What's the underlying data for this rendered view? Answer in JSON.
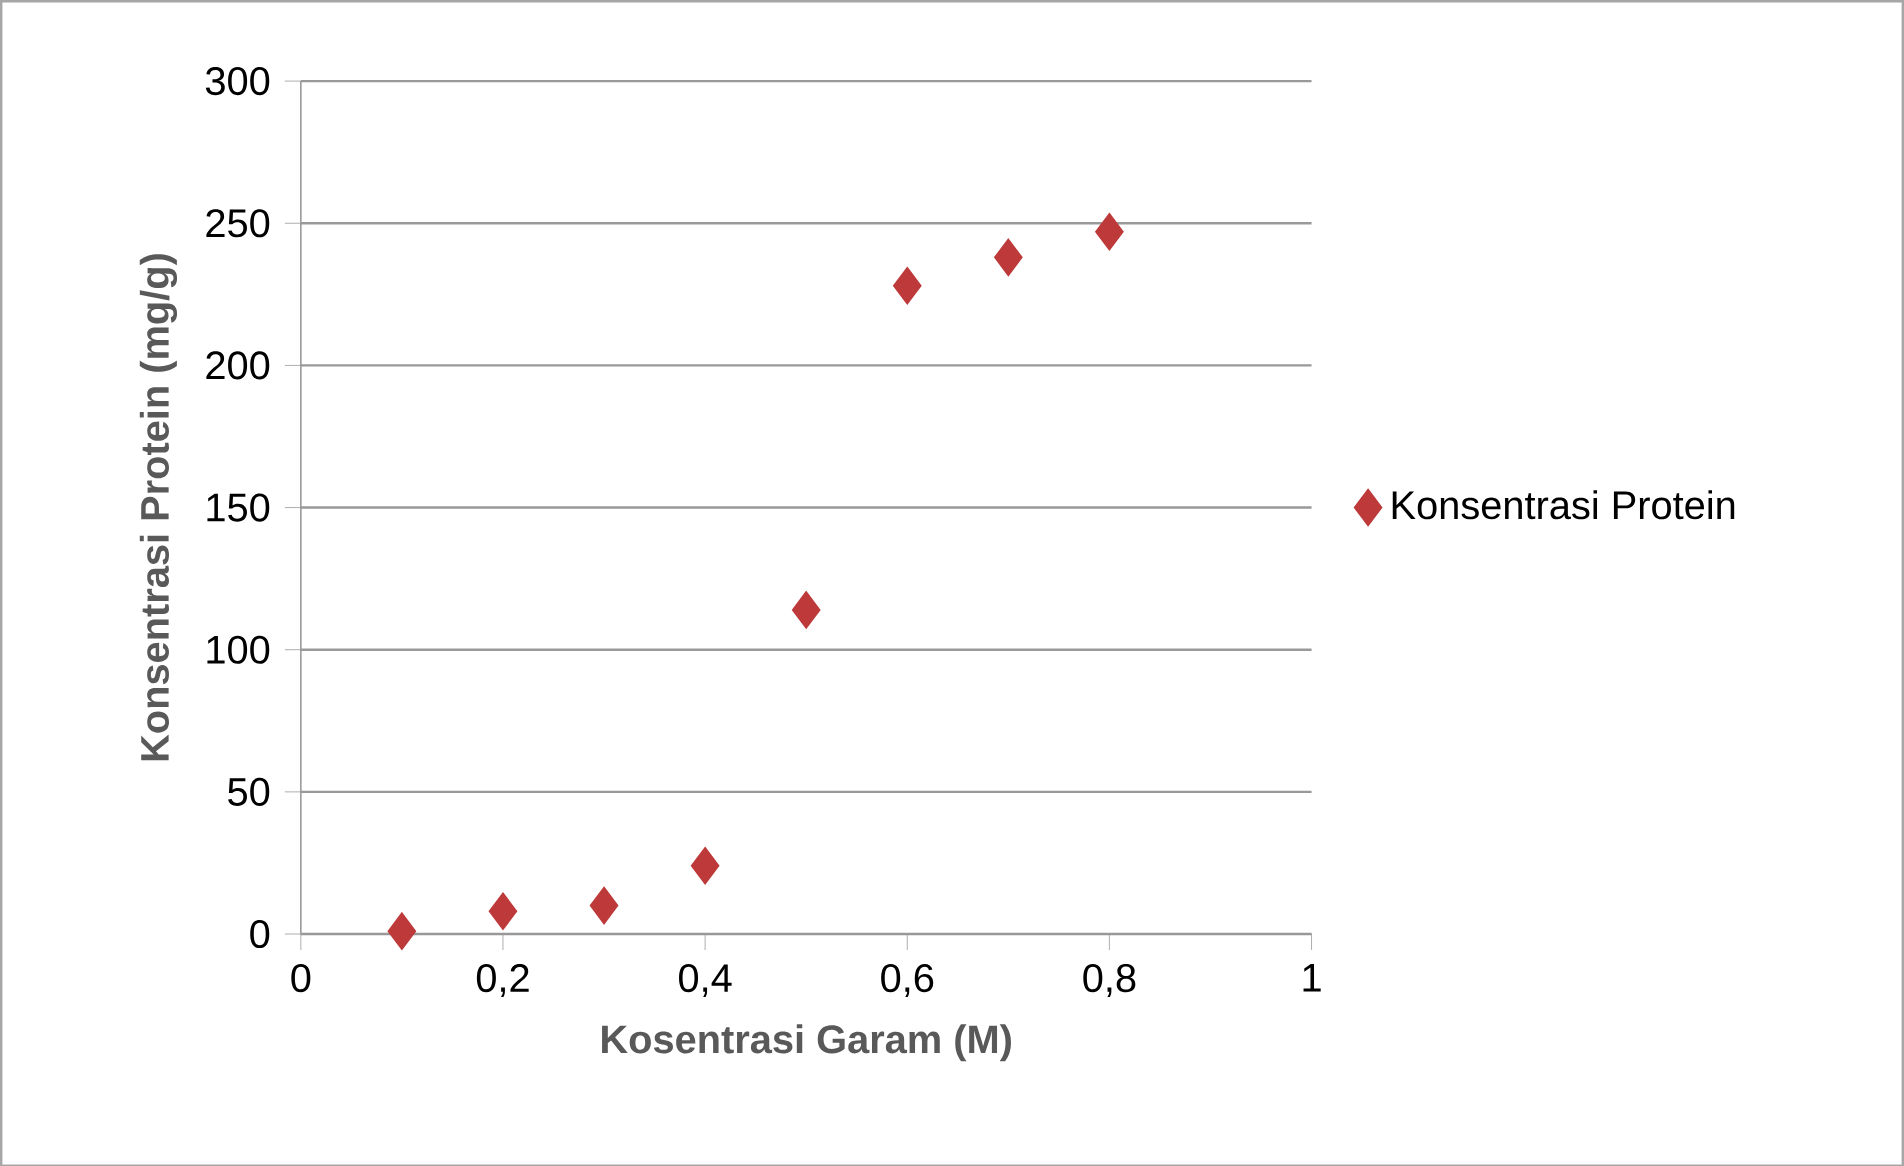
{
  "chart_data": {
    "type": "scatter",
    "xlabel": "Kosentrasi Garam (M)",
    "ylabel": "Konsentrasi Protein (mg/g)",
    "xlim": [
      0,
      1
    ],
    "ylim": [
      0,
      300
    ],
    "xticks": [
      0,
      {
        "value": 0.2,
        "label": "0,2"
      },
      {
        "value": 0.4,
        "label": "0,4"
      },
      {
        "value": 0.6,
        "label": "0,6"
      },
      {
        "value": 0.8,
        "label": "0,8"
      },
      1
    ],
    "yticks": [
      0,
      50,
      100,
      150,
      200,
      250,
      300
    ],
    "grid": "y",
    "legend": "right",
    "marker": "diamond",
    "series": [
      {
        "name": "Konsentrasi Protein",
        "color": "#be3a3a",
        "x": [
          0.1,
          0.2,
          0.3,
          0.4,
          0.5,
          0.6,
          0.7,
          0.8
        ],
        "values": [
          1,
          8,
          10,
          24,
          114,
          228,
          238,
          247
        ]
      }
    ]
  }
}
